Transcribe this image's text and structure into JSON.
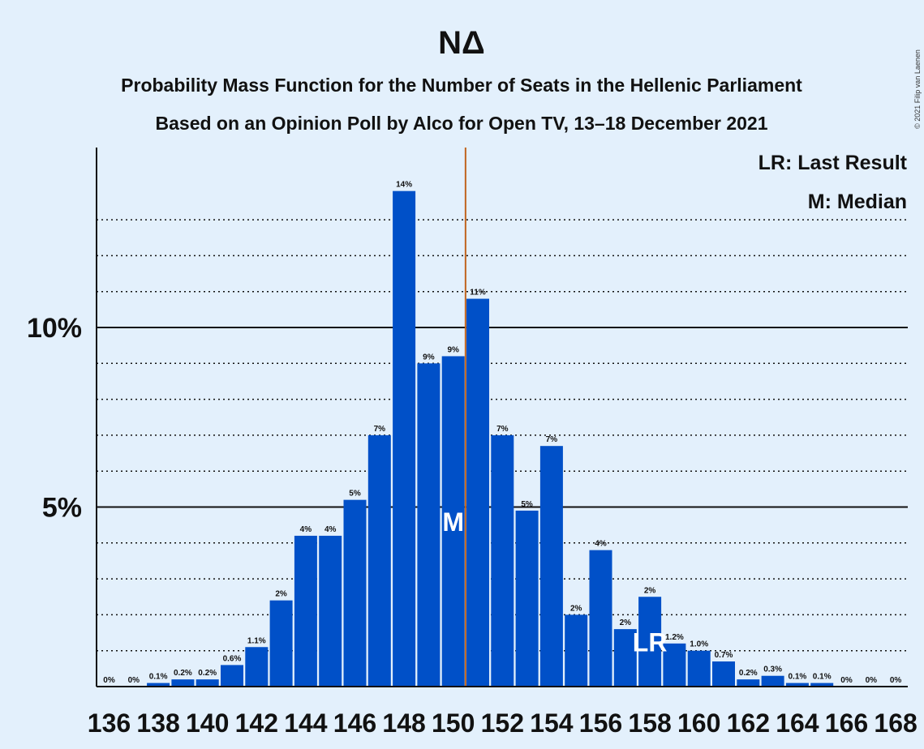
{
  "chart_data": {
    "type": "bar",
    "title": "ΝΔ",
    "subtitle_lines": [
      "Probability Mass Function for the Number of Seats in the Hellenic Parliament",
      "Based on an Opinion Poll by Alco for Open TV, 13–18 December 2021"
    ],
    "copyright": "© 2021 Filip van Laenen",
    "legend": [
      "LR: Last Result",
      "M: Median"
    ],
    "legend_position": "top-right",
    "x": [
      136,
      137,
      138,
      139,
      140,
      141,
      142,
      143,
      144,
      145,
      146,
      147,
      148,
      149,
      150,
      151,
      152,
      153,
      154,
      155,
      156,
      157,
      158,
      159,
      160,
      161,
      162,
      163,
      164,
      165,
      166,
      167,
      168
    ],
    "x_tick_labels": [
      "136",
      "138",
      "140",
      "142",
      "144",
      "146",
      "148",
      "150",
      "152",
      "154",
      "156",
      "158",
      "160",
      "162",
      "164",
      "166",
      "168"
    ],
    "values": [
      0.0,
      0.0,
      0.1,
      0.2,
      0.2,
      0.6,
      1.1,
      2.4,
      4.2,
      4.2,
      5.2,
      7.0,
      13.8,
      9.0,
      9.2,
      10.8,
      7.0,
      4.9,
      6.7,
      2.0,
      3.8,
      1.6,
      2.5,
      1.2,
      1.0,
      0.7,
      0.2,
      0.3,
      0.1,
      0.1,
      0.0,
      0.0,
      0.0
    ],
    "data_labels": [
      "0%",
      "0%",
      "0.1%",
      "0.2%",
      "0.2%",
      "0.6%",
      "1.1%",
      "2%",
      "4%",
      "4%",
      "5%",
      "7%",
      "14%",
      "9%",
      "9%",
      "11%",
      "7%",
      "5%",
      "7%",
      "2%",
      "4%",
      "2%",
      "2%",
      "1.2%",
      "1.0%",
      "0.7%",
      "0.2%",
      "0.3%",
      "0.1%",
      "0.1%",
      "0%",
      "0%",
      "0%"
    ],
    "y_ticks": [
      {
        "value": 5,
        "label": "5%"
      },
      {
        "value": 10,
        "label": "10%"
      }
    ],
    "ylim": [
      0,
      15
    ],
    "gridlines": "dotted every 1%, solid at 5% and 10%",
    "median": {
      "seat": 150,
      "label": "M"
    },
    "median_line": {
      "x": 150.5,
      "color": "#c0641e"
    },
    "last_result": {
      "seat": 158,
      "label": "LR"
    },
    "colors": {
      "bar": "#0050c8",
      "background": "#e3f0fc",
      "median_line": "#c0641e"
    }
  }
}
